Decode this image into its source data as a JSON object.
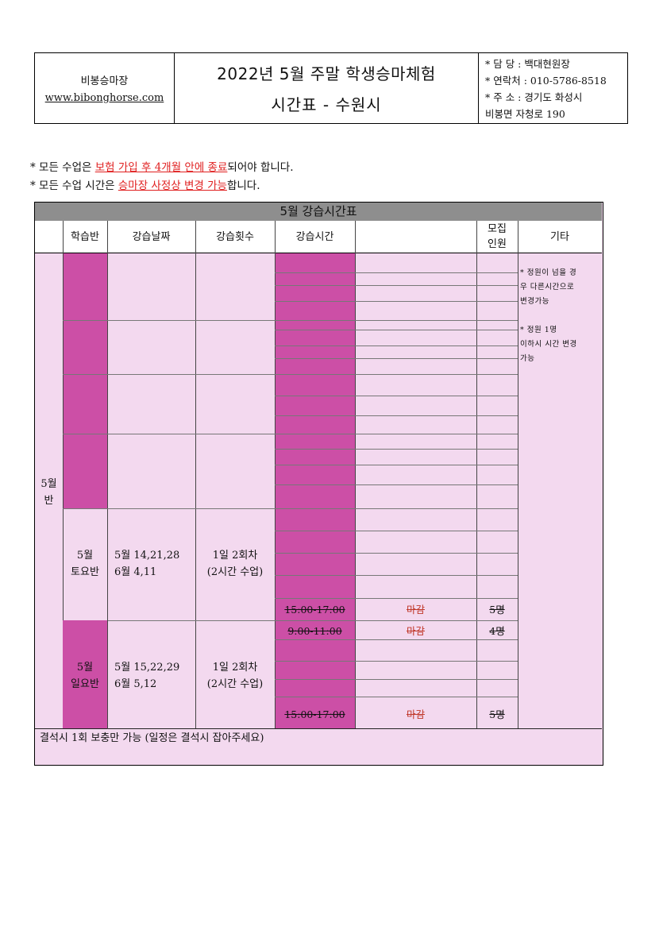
{
  "header": {
    "org_name": "비봉승마장",
    "org_url": "www.bibonghorse.com",
    "title_line1": "2022년 5월 주말 학생승마체험",
    "title_line2": "시간표 - 수원시",
    "contact_manager": "* 담  당 : 백대현원장",
    "contact_phone": "* 연락처 : 010-5786-8518",
    "contact_address1": "* 주  소 : 경기도 화성시",
    "contact_address2": "비봉면 자청로 190"
  },
  "notes": {
    "line1_pre": "* 모든 수업은 ",
    "line1_hl": "보험 가입 후 4개월 안에 종료",
    "line1_post": "되어야 합니다.",
    "line2_pre": "* 모든 수업 시간은 ",
    "line2_hl": "승마장 사정상 변경 가능",
    "line2_post": "합니다."
  },
  "table": {
    "title": "5월 강습시간표",
    "headers": {
      "class": "학습반",
      "dates": "강습날짜",
      "count": "강습횟수",
      "time": "강습시간",
      "capacity_l1": "모집",
      "capacity_l2": "인원",
      "other": "기타"
    },
    "month_label_l1": "5월",
    "month_label_l2": "반",
    "saturday": {
      "class_l1": "5월",
      "class_l2": "토요반",
      "dates_l1": "5월 14,21,28",
      "dates_l2": "6월 4,11",
      "count_l1": "1일 2회차",
      "count_l2": "(2시간 수업)",
      "slot_time": "15:00-17:00",
      "slot_status": "마감",
      "slot_capacity": "5명"
    },
    "sunday": {
      "class_l1": "5월",
      "class_l2": "일요반",
      "dates_l1": "5월 15,22,29",
      "dates_l2": "6월 5,12",
      "count_l1": "1일 2회차",
      "count_l2": "(2시간 수업)",
      "slot1_time": "9:00-11:00",
      "slot1_status": "마감",
      "slot1_capacity": "4명",
      "slot2_time": "15:00-17:00",
      "slot2_status": "마감",
      "slot2_capacity": "5명"
    },
    "other_note1_l1": "* 정원이 넘을 경",
    "other_note1_l2": "우  다른시간으로",
    "other_note1_l3": "변경가능",
    "other_note2_l1": "* 정원 1명",
    "other_note2_l2": "이하시 시간 변경",
    "other_note2_l3": "가능",
    "footnote": "결석시 1회 보충만 가능 (일정은 결석시 잡아주세요)"
  },
  "colors": {
    "magenta": "#cc4fa6",
    "pink_bg": "#f3d9ef",
    "title_gray": "#8e8e8e",
    "red": "#e02020"
  }
}
